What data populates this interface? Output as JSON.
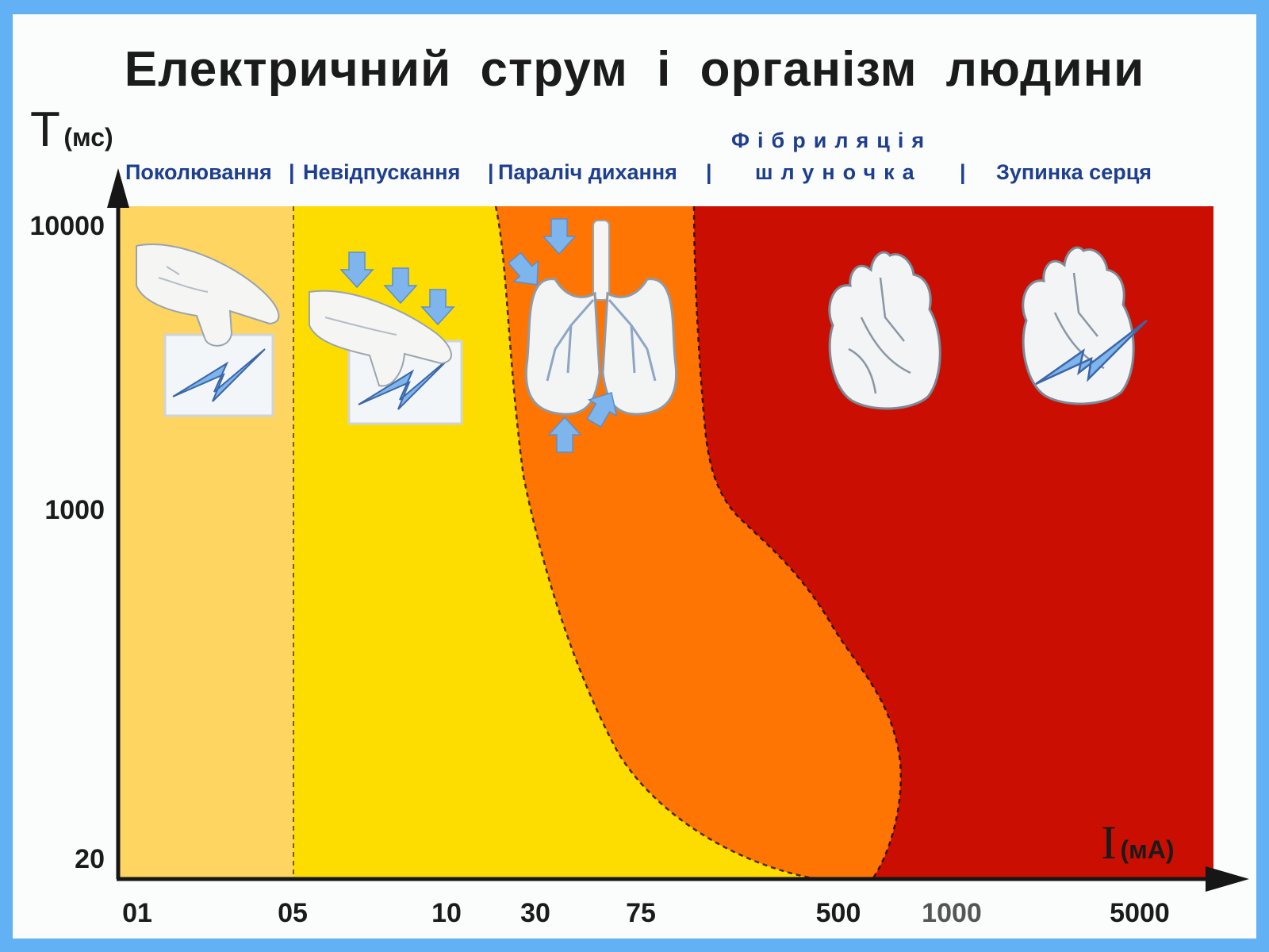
{
  "chart_data": {
    "type": "area",
    "title": "Електричний  струм  і  організм  людини",
    "y_axis": {
      "symbol": "T",
      "unit": "(мс)",
      "tick_labels": [
        "10000",
        "1000",
        "20"
      ]
    },
    "x_axis": {
      "symbol": "I",
      "unit": "(мА)",
      "tick_labels": [
        "01",
        "05",
        "10",
        "30",
        "75",
        "500",
        "1000",
        "5000"
      ]
    },
    "zones": [
      {
        "label": "Поколювання",
        "color": "#fdd560"
      },
      {
        "label": "Невідпускання",
        "color": "#fddd00"
      },
      {
        "label": "Параліч дихання",
        "color": "#fe7504"
      },
      {
        "label_top": "Фібриляція",
        "label_bottom": "шлуночка",
        "color": "#cb0e02"
      },
      {
        "label": "Зупинка  серця",
        "color": "#cb0e02"
      }
    ],
    "separator": "|",
    "icons": [
      "hand-touch-shock-icon",
      "hand-grip-shock-icon",
      "lungs-icon",
      "heart-icon",
      "heart-shock-icon"
    ]
  },
  "colors": {
    "background": "#63b1f5",
    "panel": "#fbfcfc",
    "zone_label": "#1e3f8f",
    "arrow": "#7db5ec",
    "axis": "#161616"
  }
}
